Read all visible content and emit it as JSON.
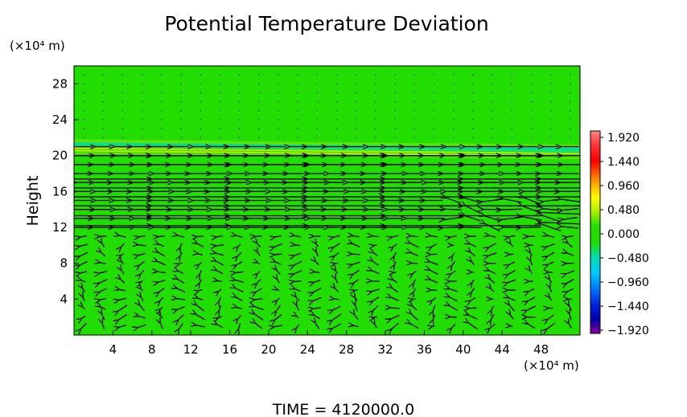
{
  "chart_data": {
    "type": "heatmap",
    "title": "Potential Temperature Deviation",
    "ylabel": "Height",
    "y_unit": "(×10⁴ m)",
    "x_unit": "(×10⁴ m)",
    "xlim": [
      0,
      52
    ],
    "ylim": [
      0,
      30
    ],
    "x_ticks": [
      4,
      8,
      12,
      16,
      20,
      24,
      28,
      32,
      36,
      40,
      44,
      48
    ],
    "y_ticks": [
      4,
      8,
      12,
      16,
      20,
      24,
      28
    ],
    "colorbar": {
      "ticks": [
        "1.920",
        "1.440",
        "0.960",
        "0.480",
        "0.000",
        "−0.480",
        "−0.960",
        "−1.440",
        "−1.920"
      ],
      "range": [
        -1.92,
        1.92
      ]
    },
    "background_value": 0.0,
    "background_color": "#22dd00",
    "anomaly_band": {
      "y_at_x0": 21.0,
      "y_at_xmax": 20.4,
      "description_values": [
        0.48,
        -0.48
      ]
    },
    "vector_field": {
      "strong_westward_rows": [
        12.2,
        13.3,
        14.4,
        15.4,
        16.4,
        17.4,
        19.0,
        20.0
      ],
      "x_step": 2,
      "y_step": 1
    }
  },
  "footer": {
    "time_label": "TIME  =  4120000.0"
  }
}
